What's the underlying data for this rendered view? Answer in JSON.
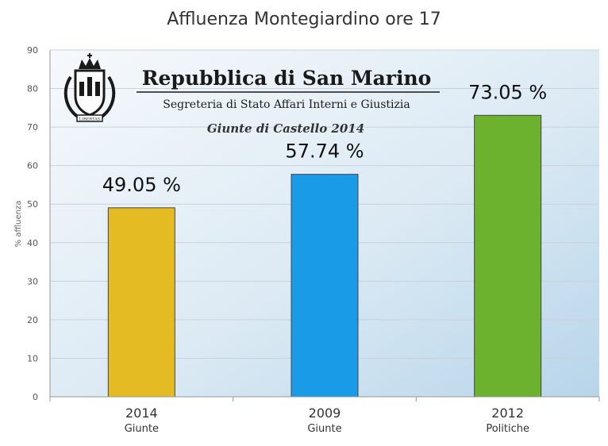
{
  "header": {
    "title": "Affluenza Montegiardino ore 17"
  },
  "watermark": {
    "title": "Repubblica di San Marino",
    "subtitle": "Segreteria di Stato Affari Interni e Giustizia",
    "event": "Giunte di Castello 2014",
    "emblem_icon": "san-marino-coat-of-arms",
    "emblem_motto": "LIBERTAS"
  },
  "chart_data": {
    "type": "bar",
    "title": "Affluenza Montegiardino ore 17",
    "ylabel": "% affluenza",
    "ylim": [
      0,
      90
    ],
    "yticks": [
      0,
      10,
      20,
      30,
      40,
      50,
      60,
      70,
      80,
      90
    ],
    "grid": true,
    "categories": [
      {
        "year": "2014",
        "type": "Giunte"
      },
      {
        "year": "2009",
        "type": "Giunte"
      },
      {
        "year": "2012",
        "type": "Politiche"
      }
    ],
    "values": [
      49.05,
      57.74,
      73.05
    ],
    "data_labels": [
      "49.05 %",
      "57.74 %",
      "73.05 %"
    ],
    "colors": [
      "#e5bb24",
      "#1a9be8",
      "#6db22f"
    ]
  },
  "colors": {
    "plot_bg_light": "#f4f8fb",
    "plot_bg_dark": "#b9d6ea",
    "grid": "#c9d2da",
    "axis": "#999999"
  }
}
